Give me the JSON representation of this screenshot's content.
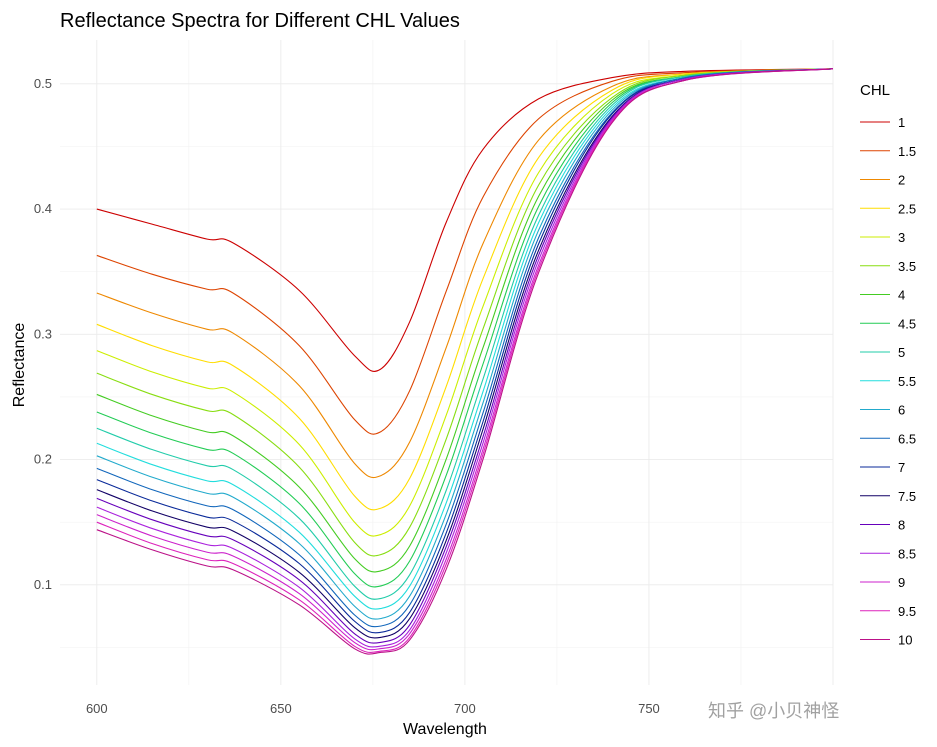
{
  "chart_data": {
    "type": "line",
    "title": "Reflectance Spectra for Different CHL Values",
    "xlabel": "Wavelength",
    "ylabel": "Reflectance",
    "xlim": [
      590,
      800
    ],
    "ylim": [
      0.02,
      0.535
    ],
    "x_ticks": [
      "600",
      "650",
      "700",
      "750"
    ],
    "x_tick_values": [
      600,
      650,
      700,
      750
    ],
    "y_ticks": [
      "0.1",
      "0.2",
      "0.3",
      "0.4",
      "0.5"
    ],
    "y_tick_values": [
      0.1,
      0.2,
      0.3,
      0.4,
      0.5
    ],
    "legend_title": "CHL",
    "legend_position": "right",
    "grid": true,
    "x": [
      600,
      615,
      630,
      637,
      655,
      670,
      677,
      685,
      695,
      705,
      720,
      740,
      760,
      800
    ],
    "series": [
      {
        "name": "1",
        "color": "#CC0000",
        "values": [
          0.4,
          0.388,
          0.376,
          0.373,
          0.335,
          0.283,
          0.272,
          0.31,
          0.39,
          0.448,
          0.488,
          0.505,
          0.51,
          0.512
        ]
      },
      {
        "name": "1.5",
        "color": "#DD4400",
        "values": [
          0.363,
          0.348,
          0.336,
          0.333,
          0.291,
          0.232,
          0.222,
          0.255,
          0.335,
          0.41,
          0.472,
          0.502,
          0.509,
          0.512
        ]
      },
      {
        "name": "2",
        "color": "#EE8800",
        "values": [
          0.333,
          0.317,
          0.304,
          0.301,
          0.259,
          0.197,
          0.187,
          0.214,
          0.29,
          0.373,
          0.455,
          0.498,
          0.508,
          0.512
        ]
      },
      {
        "name": "2.5",
        "color": "#FFDD00",
        "values": [
          0.308,
          0.291,
          0.278,
          0.275,
          0.233,
          0.171,
          0.161,
          0.185,
          0.259,
          0.345,
          0.441,
          0.495,
          0.508,
          0.512
        ]
      },
      {
        "name": "3",
        "color": "#CCEE00",
        "values": [
          0.287,
          0.27,
          0.257,
          0.254,
          0.212,
          0.15,
          0.14,
          0.163,
          0.236,
          0.323,
          0.429,
          0.492,
          0.507,
          0.512
        ]
      },
      {
        "name": "3.5",
        "color": "#88DD11",
        "values": [
          0.269,
          0.252,
          0.239,
          0.236,
          0.194,
          0.134,
          0.124,
          0.146,
          0.217,
          0.305,
          0.419,
          0.489,
          0.507,
          0.512
        ]
      },
      {
        "name": "4",
        "color": "#44CC22",
        "values": [
          0.252,
          0.235,
          0.222,
          0.219,
          0.178,
          0.121,
          0.111,
          0.131,
          0.201,
          0.29,
          0.41,
          0.487,
          0.506,
          0.512
        ]
      },
      {
        "name": "4.5",
        "color": "#22CC55",
        "values": [
          0.238,
          0.221,
          0.208,
          0.205,
          0.165,
          0.109,
          0.099,
          0.119,
          0.188,
          0.277,
          0.402,
          0.485,
          0.506,
          0.512
        ]
      },
      {
        "name": "5",
        "color": "#22CCAA",
        "values": [
          0.225,
          0.208,
          0.195,
          0.192,
          0.153,
          0.099,
          0.089,
          0.108,
          0.176,
          0.265,
          0.395,
          0.483,
          0.506,
          0.512
        ]
      },
      {
        "name": "5.5",
        "color": "#22DDDD",
        "values": [
          0.213,
          0.196,
          0.183,
          0.18,
          0.142,
          0.091,
          0.081,
          0.099,
          0.166,
          0.255,
          0.389,
          0.481,
          0.505,
          0.512
        ]
      },
      {
        "name": "6",
        "color": "#22AACC",
        "values": [
          0.203,
          0.186,
          0.173,
          0.17,
          0.133,
          0.083,
          0.073,
          0.091,
          0.157,
          0.246,
          0.383,
          0.479,
          0.505,
          0.512
        ]
      },
      {
        "name": "6.5",
        "color": "#1166BB",
        "values": [
          0.193,
          0.176,
          0.163,
          0.16,
          0.124,
          0.076,
          0.067,
          0.084,
          0.149,
          0.238,
          0.377,
          0.477,
          0.505,
          0.512
        ]
      },
      {
        "name": "7",
        "color": "#0A2A99",
        "values": [
          0.184,
          0.167,
          0.154,
          0.151,
          0.117,
          0.071,
          0.062,
          0.078,
          0.142,
          0.231,
          0.372,
          0.476,
          0.504,
          0.512
        ]
      },
      {
        "name": "7.5",
        "color": "#110066",
        "values": [
          0.176,
          0.159,
          0.146,
          0.143,
          0.11,
          0.066,
          0.058,
          0.073,
          0.136,
          0.225,
          0.367,
          0.474,
          0.504,
          0.512
        ]
      },
      {
        "name": "8",
        "color": "#6600BB",
        "values": [
          0.169,
          0.152,
          0.139,
          0.136,
          0.104,
          0.061,
          0.054,
          0.068,
          0.131,
          0.219,
          0.363,
          0.473,
          0.504,
          0.512
        ]
      },
      {
        "name": "8.5",
        "color": "#AA22DD",
        "values": [
          0.162,
          0.145,
          0.132,
          0.129,
          0.098,
          0.057,
          0.051,
          0.064,
          0.126,
          0.214,
          0.359,
          0.472,
          0.504,
          0.512
        ]
      },
      {
        "name": "9",
        "color": "#CC22CC",
        "values": [
          0.156,
          0.139,
          0.126,
          0.123,
          0.093,
          0.054,
          0.049,
          0.061,
          0.121,
          0.209,
          0.355,
          0.471,
          0.503,
          0.512
        ]
      },
      {
        "name": "9.5",
        "color": "#DD22BB",
        "values": [
          0.15,
          0.133,
          0.12,
          0.117,
          0.088,
          0.051,
          0.047,
          0.058,
          0.117,
          0.205,
          0.352,
          0.47,
          0.503,
          0.512
        ]
      },
      {
        "name": "10",
        "color": "#BB1188",
        "values": [
          0.144,
          0.128,
          0.115,
          0.112,
          0.084,
          0.049,
          0.046,
          0.056,
          0.113,
          0.201,
          0.349,
          0.469,
          0.503,
          0.512
        ]
      }
    ]
  },
  "watermark": "知乎 @小贝神怪"
}
